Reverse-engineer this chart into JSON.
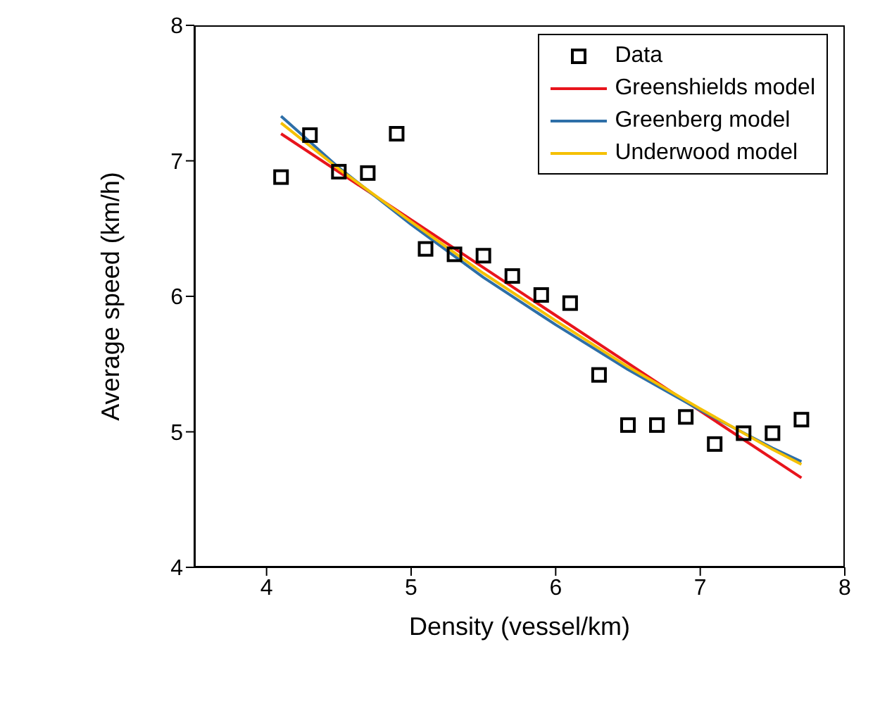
{
  "chart_data": {
    "type": "scatter",
    "xlabel": "Density (vessel/km)",
    "ylabel": "Average speed (km/h)",
    "xlim": [
      3.5,
      8
    ],
    "xticks": [
      4,
      5,
      6,
      7,
      8
    ],
    "ylim": [
      4,
      8
    ],
    "yticks": [
      4,
      5,
      6,
      7,
      8
    ],
    "grid": false,
    "legend": "top right",
    "series": [
      {
        "name": "Data",
        "marker": "square",
        "color": "#000000",
        "x": [
          4.1,
          4.3,
          4.5,
          4.7,
          4.9,
          5.1,
          5.3,
          5.5,
          5.7,
          5.9,
          6.1,
          6.3,
          6.5,
          6.7,
          6.9,
          7.1,
          7.3,
          7.5,
          7.7
        ],
        "values": [
          6.88,
          7.19,
          6.92,
          6.91,
          7.2,
          6.35,
          6.31,
          6.3,
          6.15,
          6.01,
          5.95,
          5.42,
          5.05,
          5.05,
          5.11,
          4.91,
          4.99,
          4.99,
          5.09
        ]
      },
      {
        "name": "Greenshields model",
        "type": "line",
        "marker": "none",
        "color": "#e8141c",
        "x": [
          4.1,
          7.7
        ],
        "values": [
          7.2,
          4.66
        ]
      },
      {
        "name": "Greenberg model",
        "type": "line",
        "marker": "none",
        "color": "#2e6fa8",
        "x": [
          4.1,
          4.5,
          5,
          5.5,
          6,
          6.5,
          7,
          7.5,
          7.7
        ],
        "values": [
          7.33,
          6.95,
          6.53,
          6.14,
          5.79,
          5.46,
          5.16,
          4.88,
          4.78
        ]
      },
      {
        "name": "Underwood model",
        "type": "line",
        "marker": "none",
        "color": "#f5c000",
        "x": [
          4.1,
          4.5,
          5,
          5.5,
          6,
          6.5,
          7,
          7.5,
          7.7
        ],
        "values": [
          7.28,
          6.94,
          6.55,
          6.17,
          5.82,
          5.48,
          5.17,
          4.87,
          4.76
        ]
      }
    ]
  }
}
